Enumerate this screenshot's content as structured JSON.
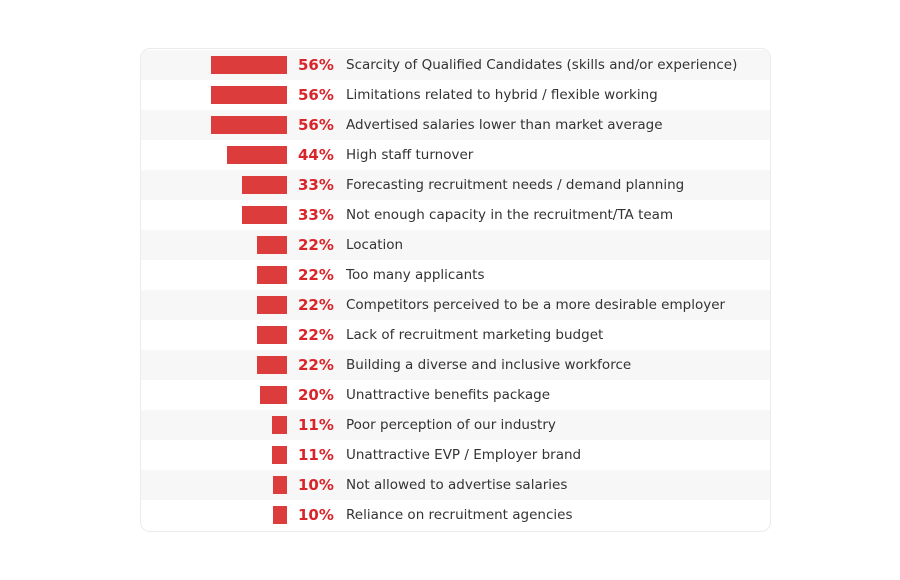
{
  "chart_data": {
    "type": "bar",
    "orientation": "horizontal",
    "title": "",
    "xlabel": "",
    "ylabel": "",
    "xlim": [
      0,
      100
    ],
    "grid": false,
    "color": "#dc3c3c",
    "label_color": "#d9252a",
    "categories": [
      "Scarcity of Qualified Candidates (skills and/or experience)",
      "Limitations related to hybrid / flexible working",
      "Advertised salaries lower than market average",
      "High staff turnover",
      "Forecasting recruitment needs / demand planning",
      "Not enough capacity in the recruitment/TA team",
      "Location",
      "Too many applicants",
      "Competitors perceived to be a more desirable employer",
      "Lack of recruitment marketing budget",
      "Building a diverse and inclusive workforce",
      "Unattractive benefits package",
      "Poor perception of our industry",
      "Unattractive EVP / Employer brand",
      "Not allowed to advertise salaries",
      "Reliance on recruitment agencies"
    ],
    "values": [
      56,
      56,
      56,
      44,
      33,
      33,
      22,
      22,
      22,
      22,
      22,
      20,
      11,
      11,
      10,
      10
    ],
    "value_labels": [
      "56%",
      "56%",
      "56%",
      "44%",
      "33%",
      "33%",
      "22%",
      "22%",
      "22%",
      "22%",
      "22%",
      "20%",
      "11%",
      "11%",
      "10%",
      "10%"
    ]
  }
}
